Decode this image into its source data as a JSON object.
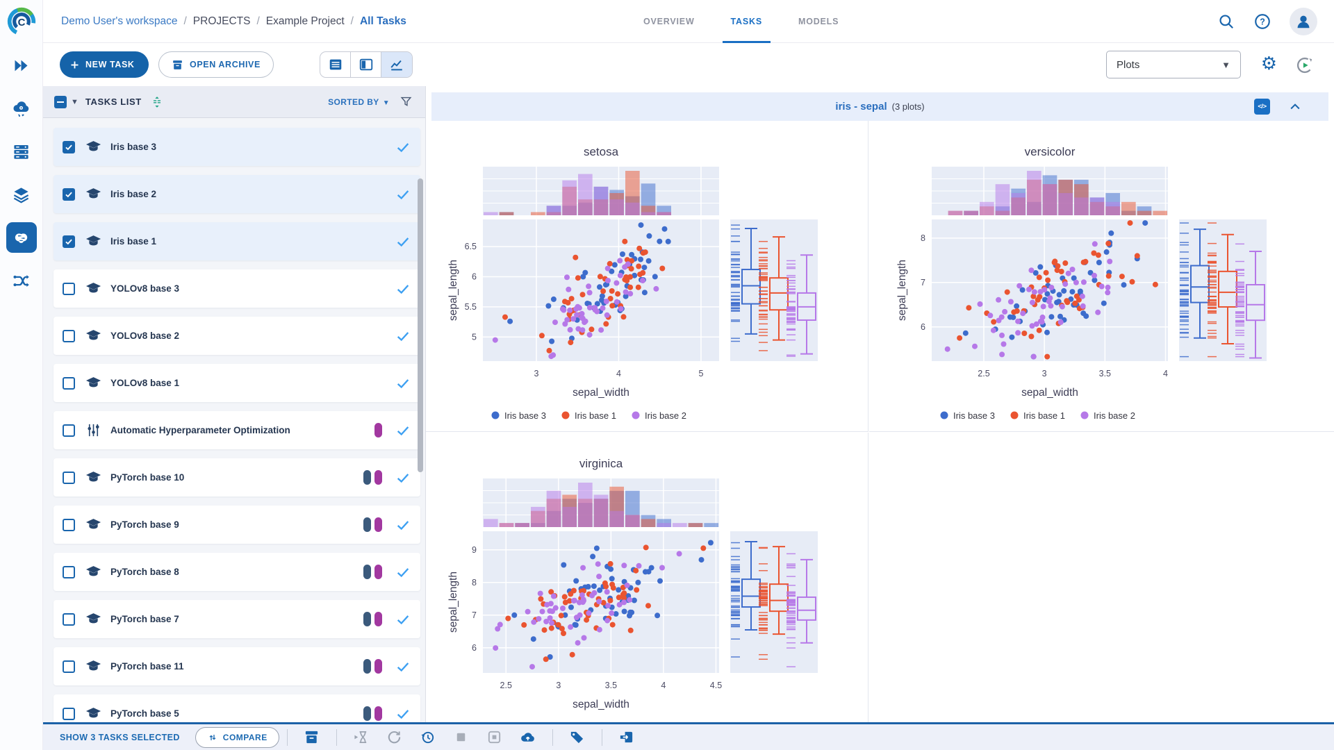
{
  "app": {
    "logo_letter": "C"
  },
  "header": {
    "breadcrumb": [
      {
        "label": "Demo User's workspace"
      },
      {
        "label": "PROJECTS"
      },
      {
        "label": "Example Project"
      },
      {
        "label": "All Tasks"
      }
    ],
    "tabs": [
      {
        "label": "OVERVIEW",
        "active": false
      },
      {
        "label": "TASKS",
        "active": true
      },
      {
        "label": "MODELS",
        "active": false
      }
    ]
  },
  "toolbar": {
    "new_task_label": "NEW TASK",
    "open_archive_label": "OPEN ARCHIVE",
    "view_select_value": "Plots"
  },
  "tasks_panel": {
    "title": "TASKS LIST",
    "sorted_by_label": "SORTED BY",
    "tasks": [
      {
        "name": "Iris base 3",
        "selected": true,
        "icon": "task",
        "badges": []
      },
      {
        "name": "Iris base 2",
        "selected": true,
        "icon": "task",
        "badges": []
      },
      {
        "name": "Iris base 1",
        "selected": true,
        "icon": "task",
        "badges": []
      },
      {
        "name": "YOLOv8 base 3",
        "selected": false,
        "icon": "task",
        "badges": []
      },
      {
        "name": "YOLOv8 base 2",
        "selected": false,
        "icon": "task",
        "badges": []
      },
      {
        "name": "YOLOv8 base 1",
        "selected": false,
        "icon": "task",
        "badges": []
      },
      {
        "name": "Automatic Hyperparameter Optimization",
        "selected": false,
        "icon": "tune",
        "badges": [
          "magenta"
        ]
      },
      {
        "name": "PyTorch base 10",
        "selected": false,
        "icon": "task",
        "badges": [
          "slate",
          "magenta"
        ]
      },
      {
        "name": "PyTorch base 9",
        "selected": false,
        "icon": "task",
        "badges": [
          "slate",
          "magenta"
        ]
      },
      {
        "name": "PyTorch base 8",
        "selected": false,
        "icon": "task",
        "badges": [
          "slate",
          "magenta"
        ]
      },
      {
        "name": "PyTorch base 7",
        "selected": false,
        "icon": "task",
        "badges": [
          "slate",
          "magenta"
        ]
      },
      {
        "name": "PyTorch base 11",
        "selected": false,
        "icon": "task",
        "badges": [
          "slate",
          "magenta"
        ]
      },
      {
        "name": "PyTorch base 5",
        "selected": false,
        "icon": "task",
        "badges": [
          "slate",
          "magenta"
        ]
      }
    ]
  },
  "plots_panel": {
    "title": "iris - sepal",
    "subtitle": "(3 plots)",
    "code_icon_label": "</>"
  },
  "footer": {
    "selected_label": "SHOW 3 TASKS SELECTED",
    "compare_label": "COMPARE"
  },
  "colors": {
    "primary": "#1965ad",
    "link_blue": "#2f79c2",
    "row_check": "#3da0f2",
    "badges": {
      "slate": "#3b5a7c",
      "magenta": "#a238a0"
    },
    "plot_bg": "#e7ecf6"
  },
  "chart_data": [
    {
      "type": "scatter",
      "title": "setosa",
      "xlabel": "sepal_width",
      "ylabel": "sepal_length",
      "xlim": [
        2.35,
        5.22
      ],
      "xticks": [
        3,
        4,
        5
      ],
      "ylim": [
        4.6,
        6.95
      ],
      "yticks": [
        5,
        5.5,
        6,
        6.5
      ],
      "marginals": {
        "top": "histogram",
        "right": "box+rug"
      },
      "legend_position": "bottom",
      "series": [
        {
          "name": "Iris base 3",
          "color": "#3d6ccc",
          "cloud": {
            "n": 46,
            "mean": [
              3.95,
              5.92
            ],
            "std": [
              0.36,
              0.4
            ],
            "corr": 0.74
          },
          "box": {
            "low": 5.05,
            "q1": 5.55,
            "med": 5.85,
            "q3": 6.12,
            "high": 6.8
          },
          "outliers": [
            [
              2.68,
              5.26
            ]
          ]
        },
        {
          "name": "Iris base 1",
          "color": "#ea5430",
          "cloud": {
            "n": 46,
            "mean": [
              3.88,
              5.8
            ],
            "std": [
              0.35,
              0.4
            ],
            "corr": 0.72
          },
          "box": {
            "low": 4.95,
            "q1": 5.45,
            "med": 5.73,
            "q3": 5.98,
            "high": 6.66
          },
          "outliers": [
            [
              2.62,
              5.33
            ]
          ]
        },
        {
          "name": "Iris base 2",
          "color": "#b678e8",
          "cloud": {
            "n": 46,
            "mean": [
              3.72,
              5.52
            ],
            "std": [
              0.34,
              0.38
            ],
            "corr": 0.7
          },
          "box": {
            "low": 4.72,
            "q1": 5.28,
            "med": 5.5,
            "q3": 5.73,
            "high": 6.36
          },
          "outliers": [
            [
              2.5,
              4.95
            ],
            [
              3.18,
              4.68
            ]
          ]
        }
      ]
    },
    {
      "type": "scatter",
      "title": "versicolor",
      "xlabel": "sepal_width",
      "ylabel": "sepal_length",
      "xlim": [
        2.07,
        4.02
      ],
      "xticks": [
        2.5,
        3,
        3.5,
        4
      ],
      "ylim": [
        5.23,
        8.42
      ],
      "yticks": [
        6,
        7,
        8
      ],
      "marginals": {
        "top": "histogram",
        "right": "box+rug"
      },
      "legend_position": "bottom",
      "series": [
        {
          "name": "Iris base 3",
          "color": "#3d6ccc",
          "cloud": {
            "n": 48,
            "mean": [
              3.18,
              6.92
            ],
            "std": [
              0.3,
              0.55
            ],
            "corr": 0.58
          },
          "box": {
            "low": 5.75,
            "q1": 6.55,
            "med": 6.9,
            "q3": 7.38,
            "high": 8.2
          },
          "outliers": [
            [
              2.35,
              5.86
            ]
          ]
        },
        {
          "name": "Iris base 1",
          "color": "#ea5430",
          "cloud": {
            "n": 48,
            "mean": [
              3.12,
              6.8
            ],
            "std": [
              0.3,
              0.54
            ],
            "corr": 0.55
          },
          "box": {
            "low": 5.62,
            "q1": 6.45,
            "med": 6.78,
            "q3": 7.25,
            "high": 8.08
          },
          "outliers": [
            [
              2.3,
              5.75
            ]
          ]
        },
        {
          "name": "Iris base 2",
          "color": "#b678e8",
          "cloud": {
            "n": 48,
            "mean": [
              3.02,
              6.52
            ],
            "std": [
              0.3,
              0.5
            ],
            "corr": 0.55
          },
          "box": {
            "low": 5.3,
            "q1": 6.15,
            "med": 6.5,
            "q3": 6.95,
            "high": 7.7
          },
          "outliers": [
            [
              2.2,
              5.5
            ],
            [
              2.65,
              5.38
            ]
          ]
        }
      ]
    },
    {
      "type": "scatter",
      "title": "virginica",
      "xlabel": "sepal_width",
      "ylabel": "sepal_length",
      "xlim": [
        2.28,
        4.53
      ],
      "xticks": [
        2.5,
        3,
        3.5,
        4,
        4.5
      ],
      "ylim": [
        5.23,
        9.57
      ],
      "yticks": [
        6,
        7,
        8,
        9
      ],
      "marginals": {
        "top": "histogram",
        "right": "box+rug"
      },
      "legend_position": "bottom",
      "series": [
        {
          "name": "Iris base 3",
          "color": "#3d6ccc",
          "cloud": {
            "n": 48,
            "mean": [
              3.38,
              7.62
            ],
            "std": [
              0.32,
              0.6
            ],
            "corr": 0.52
          },
          "box": {
            "low": 6.55,
            "q1": 7.25,
            "med": 7.58,
            "q3": 8.1,
            "high": 9.25
          },
          "outliers": [
            [
              2.58,
              7.0
            ],
            [
              2.92,
              5.72
            ],
            [
              4.45,
              9.22
            ]
          ]
        },
        {
          "name": "Iris base 1",
          "color": "#ea5430",
          "cloud": {
            "n": 48,
            "mean": [
              3.32,
              7.5
            ],
            "std": [
              0.32,
              0.58
            ],
            "corr": 0.5
          },
          "box": {
            "low": 6.42,
            "q1": 7.12,
            "med": 7.45,
            "q3": 7.95,
            "high": 9.1
          },
          "outliers": [
            [
              2.52,
              6.9
            ],
            [
              2.88,
              5.65
            ],
            [
              4.38,
              9.05
            ]
          ]
        },
        {
          "name": "Iris base 2",
          "color": "#b678e8",
          "cloud": {
            "n": 48,
            "mean": [
              3.22,
              7.18
            ],
            "std": [
              0.32,
              0.55
            ],
            "corr": 0.5
          },
          "box": {
            "low": 6.15,
            "q1": 6.85,
            "med": 7.15,
            "q3": 7.55,
            "high": 8.7
          },
          "outliers": [
            [
              2.42,
              6.58
            ],
            [
              2.75,
              5.42
            ],
            [
              4.15,
              8.88
            ]
          ]
        }
      ]
    }
  ]
}
